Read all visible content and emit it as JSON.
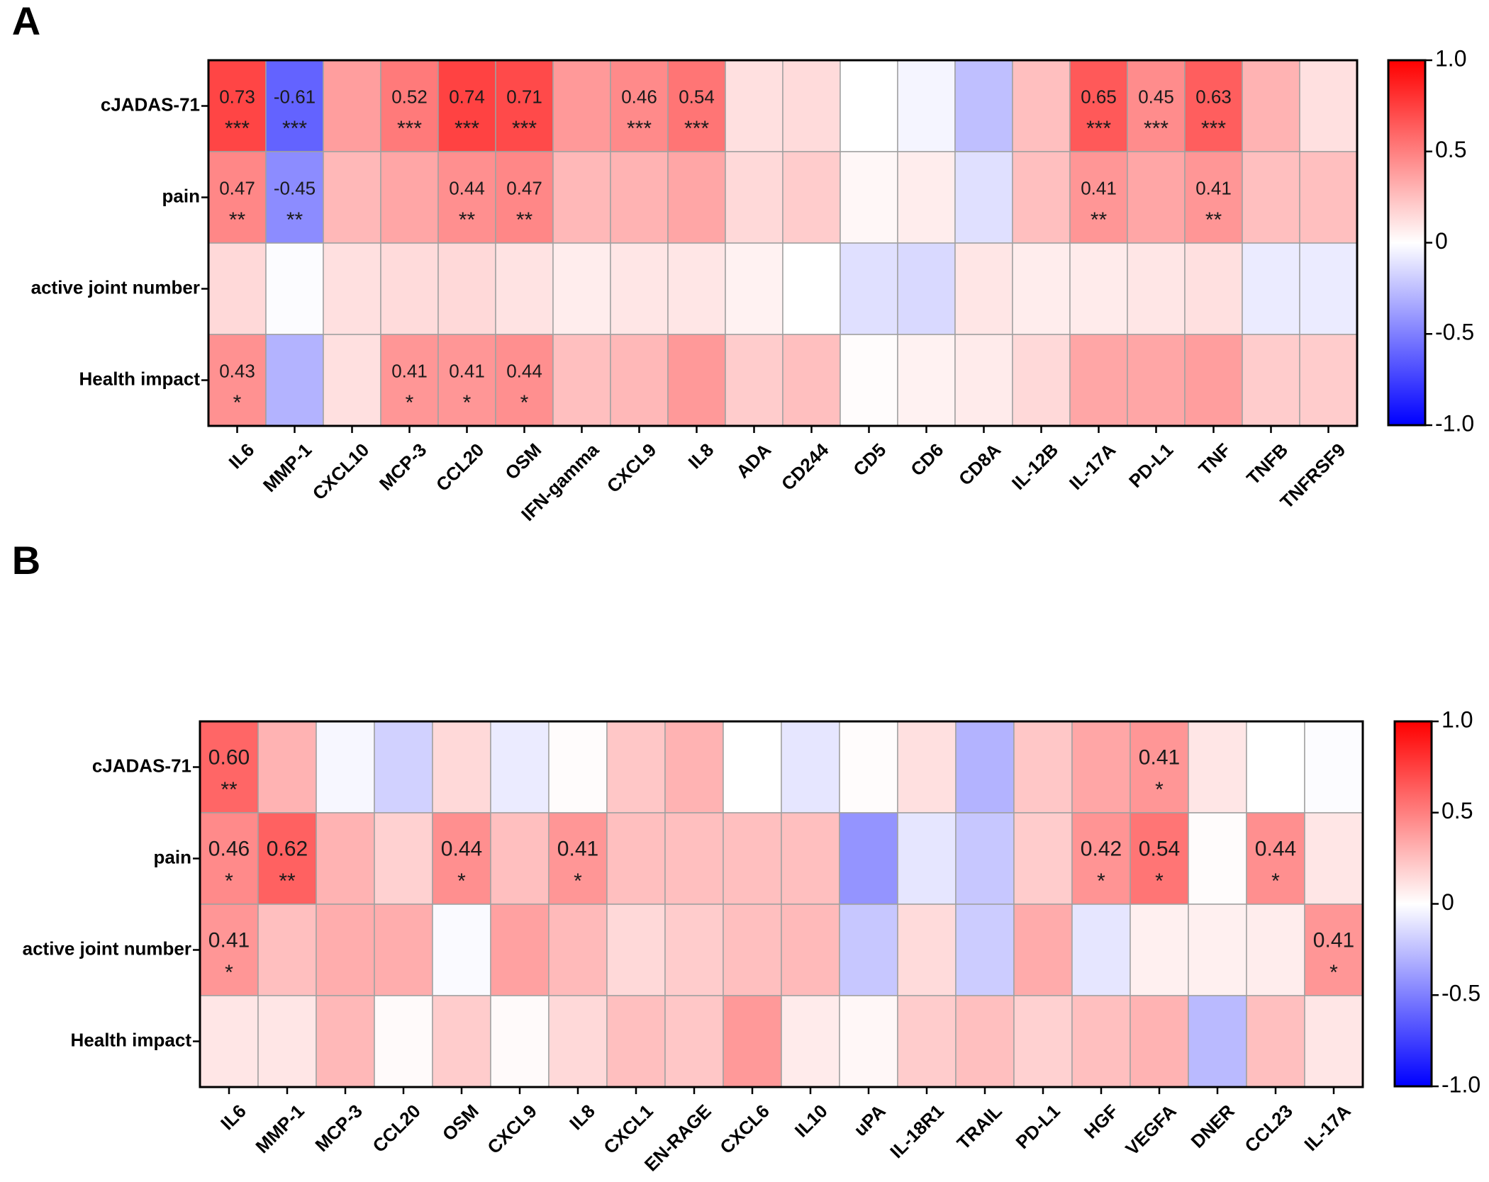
{
  "chart_data": [
    {
      "type": "heatmap",
      "panel_label": "A",
      "rows": [
        "cJADAS-71",
        "pain",
        "active joint number",
        "Health impact"
      ],
      "columns": [
        "IL6",
        "MMP-1",
        "CXCL10",
        "MCP-3",
        "CCL20",
        "OSM",
        "IFN-gamma",
        "CXCL9",
        "IL8",
        "ADA",
        "CD244",
        "CD5",
        "CD6",
        "CD8A",
        "IL-12B",
        "IL-17A",
        "PD-L1",
        "TNF",
        "TNFB",
        "TNFRSF9"
      ],
      "values": [
        [
          0.73,
          -0.61,
          0.38,
          0.52,
          0.74,
          0.71,
          0.4,
          0.46,
          0.54,
          0.12,
          0.14,
          0.0,
          -0.04,
          -0.25,
          0.25,
          0.65,
          0.45,
          0.63,
          0.3,
          0.12
        ],
        [
          0.47,
          -0.45,
          0.28,
          0.35,
          0.44,
          0.47,
          0.28,
          0.3,
          0.35,
          0.15,
          0.2,
          0.03,
          0.07,
          -0.12,
          0.25,
          0.41,
          0.35,
          0.41,
          0.25,
          0.25
        ],
        [
          0.15,
          -0.01,
          0.12,
          0.14,
          0.15,
          0.11,
          0.07,
          0.1,
          0.1,
          0.05,
          0.0,
          -0.12,
          -0.15,
          0.1,
          0.07,
          0.08,
          0.1,
          0.12,
          -0.08,
          -0.08
        ],
        [
          0.43,
          -0.3,
          0.12,
          0.41,
          0.41,
          0.44,
          0.25,
          0.28,
          0.4,
          0.2,
          0.25,
          0.01,
          0.05,
          0.08,
          0.15,
          0.35,
          0.35,
          0.38,
          0.2,
          0.2
        ]
      ],
      "annotations": [
        {
          "row": 0,
          "col": 0,
          "value": "0.73",
          "stars": "***"
        },
        {
          "row": 0,
          "col": 1,
          "value": "-0.61",
          "stars": "***"
        },
        {
          "row": 0,
          "col": 3,
          "value": "0.52",
          "stars": "***"
        },
        {
          "row": 0,
          "col": 4,
          "value": "0.74",
          "stars": "***"
        },
        {
          "row": 0,
          "col": 5,
          "value": "0.71",
          "stars": "***"
        },
        {
          "row": 0,
          "col": 7,
          "value": "0.46",
          "stars": "***"
        },
        {
          "row": 0,
          "col": 8,
          "value": "0.54",
          "stars": "***"
        },
        {
          "row": 0,
          "col": 15,
          "value": "0.65",
          "stars": "***"
        },
        {
          "row": 0,
          "col": 16,
          "value": "0.45",
          "stars": "***"
        },
        {
          "row": 0,
          "col": 17,
          "value": "0.63",
          "stars": "***"
        },
        {
          "row": 1,
          "col": 0,
          "value": "0.47",
          "stars": "**"
        },
        {
          "row": 1,
          "col": 1,
          "value": "-0.45",
          "stars": "**"
        },
        {
          "row": 1,
          "col": 4,
          "value": "0.44",
          "stars": "**"
        },
        {
          "row": 1,
          "col": 5,
          "value": "0.47",
          "stars": "**"
        },
        {
          "row": 1,
          "col": 15,
          "value": "0.41",
          "stars": "**"
        },
        {
          "row": 1,
          "col": 17,
          "value": "0.41",
          "stars": "**"
        },
        {
          "row": 3,
          "col": 0,
          "value": "0.43",
          "stars": "*"
        },
        {
          "row": 3,
          "col": 3,
          "value": "0.41",
          "stars": "*"
        },
        {
          "row": 3,
          "col": 4,
          "value": "0.41",
          "stars": "*"
        },
        {
          "row": 3,
          "col": 5,
          "value": "0.44",
          "stars": "*"
        }
      ],
      "colorbar": {
        "ticks": [
          "1.0",
          "0.5",
          "0",
          "-0.5",
          "-1.0"
        ],
        "tick_values": [
          1.0,
          0.5,
          0.0,
          -0.5,
          -1.0
        ],
        "range": [
          -1.0,
          1.0
        ],
        "colors": {
          "low": "#0000ff",
          "mid": "#ffffff",
          "high": "#ff0000"
        }
      }
    },
    {
      "type": "heatmap",
      "panel_label": "B",
      "rows": [
        "cJADAS-71",
        "pain",
        "active joint number",
        "Health impact"
      ],
      "columns": [
        "IL6",
        "MMP-1",
        "MCP-3",
        "CCL20",
        "OSM",
        "CXCL9",
        "IL8",
        "CXCL1",
        "EN-RAGE",
        "CXCL6",
        "IL10",
        "uPA",
        "IL-18R1",
        "TRAIL",
        "PD-L1",
        "HGF",
        "VEGFA",
        "DNER",
        "CCL23",
        "IL-17A"
      ],
      "values": [
        [
          0.6,
          0.3,
          -0.03,
          -0.18,
          0.15,
          -0.08,
          0.01,
          0.22,
          0.3,
          0.0,
          -0.1,
          0.01,
          0.12,
          -0.3,
          0.22,
          0.35,
          0.41,
          0.1,
          0.0,
          -0.01
        ],
        [
          0.46,
          0.62,
          0.3,
          0.18,
          0.44,
          0.25,
          0.41,
          0.25,
          0.25,
          0.25,
          0.25,
          -0.42,
          -0.1,
          -0.22,
          0.2,
          0.42,
          0.54,
          0.01,
          0.44,
          0.1
        ],
        [
          0.41,
          0.25,
          0.32,
          0.32,
          -0.02,
          0.37,
          0.27,
          0.15,
          0.2,
          0.25,
          0.27,
          -0.22,
          0.14,
          -0.2,
          0.33,
          -0.1,
          0.06,
          0.06,
          0.07,
          0.41
        ],
        [
          0.1,
          0.1,
          0.28,
          0.02,
          0.2,
          0.02,
          0.15,
          0.25,
          0.22,
          0.4,
          0.08,
          0.03,
          0.2,
          0.25,
          0.18,
          0.25,
          0.3,
          -0.27,
          0.25,
          0.1
        ]
      ],
      "annotations": [
        {
          "row": 0,
          "col": 0,
          "value": "0.60",
          "stars": "**"
        },
        {
          "row": 0,
          "col": 16,
          "value": "0.41",
          "stars": "*"
        },
        {
          "row": 1,
          "col": 0,
          "value": "0.46",
          "stars": "*"
        },
        {
          "row": 1,
          "col": 1,
          "value": "0.62",
          "stars": "**"
        },
        {
          "row": 1,
          "col": 4,
          "value": "0.44",
          "stars": "*"
        },
        {
          "row": 1,
          "col": 6,
          "value": "0.41",
          "stars": "*"
        },
        {
          "row": 1,
          "col": 15,
          "value": "0.42",
          "stars": "*"
        },
        {
          "row": 1,
          "col": 16,
          "value": "0.54",
          "stars": "*"
        },
        {
          "row": 1,
          "col": 18,
          "value": "0.44",
          "stars": "*"
        },
        {
          "row": 2,
          "col": 0,
          "value": "0.41",
          "stars": "*"
        },
        {
          "row": 2,
          "col": 19,
          "value": "0.41",
          "stars": "*"
        }
      ],
      "colorbar": {
        "ticks": [
          "1.0",
          "0.5",
          "0",
          "-0.5",
          "-1.0"
        ],
        "tick_values": [
          1.0,
          0.5,
          0.0,
          -0.5,
          -1.0
        ],
        "range": [
          -1.0,
          1.0
        ],
        "colors": {
          "low": "#0000ff",
          "mid": "#ffffff",
          "high": "#ff0000"
        }
      }
    }
  ]
}
